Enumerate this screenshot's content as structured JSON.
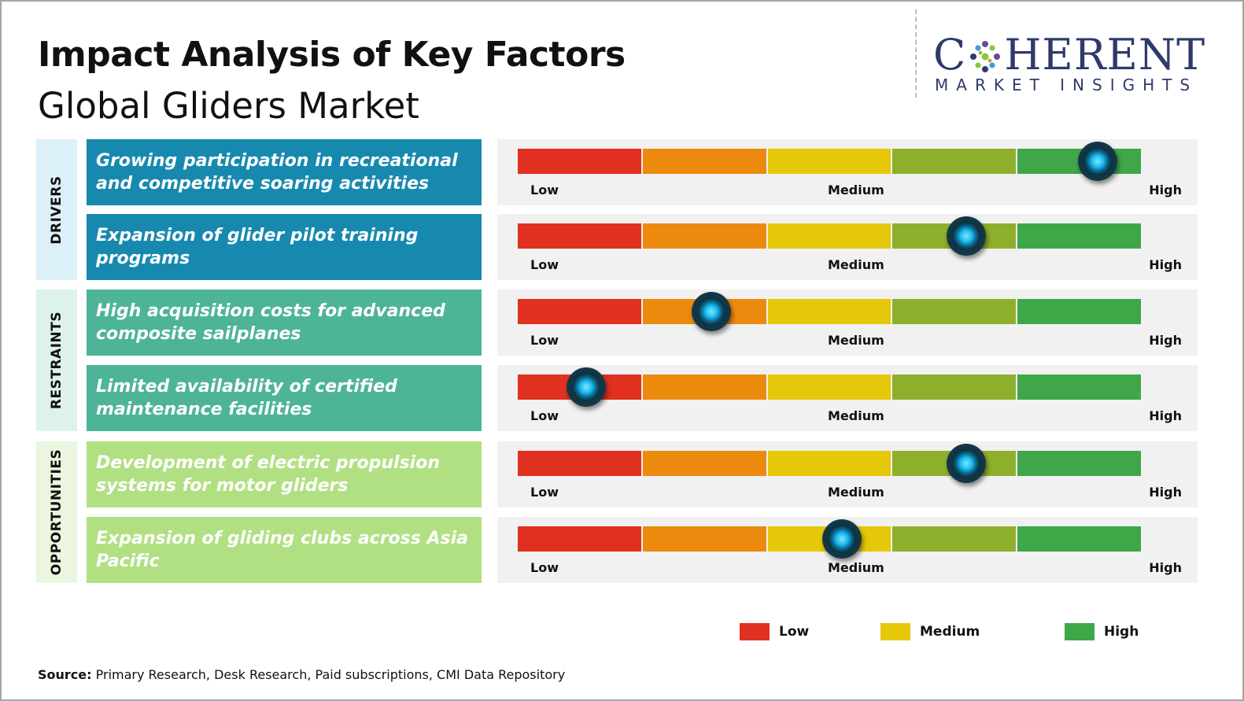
{
  "title": "Impact Analysis of Key Factors",
  "subtitle": "Global Gliders Market",
  "logo": {
    "main": "C  HERENT",
    "sub": "MARKET INSIGHTS"
  },
  "colors": {
    "drivers_label_bg": "#dcf0f9",
    "drivers_factor_bg": "#1789af",
    "restraints_label_bg": "#ddf2ea",
    "restraints_factor_bg": "#4db497",
    "opportunities_label_bg": "#eaf6e0",
    "opportunities_factor_bg": "#b1e083",
    "scale": [
      "#e03020",
      "#ec8a0e",
      "#e6c80a",
      "#8eaf2c",
      "#3fa748"
    ]
  },
  "categories": [
    {
      "label": "DRIVERS"
    },
    {
      "label": "RESTRAINTS"
    },
    {
      "label": "OPPORTUNITIES"
    }
  ],
  "scale_labels": {
    "low": "Low",
    "medium": "Medium",
    "high": "High"
  },
  "chart_data": {
    "type": "table",
    "title": "Impact Analysis of Key Factors",
    "subtitle": "Global Gliders Market",
    "scale": [
      "Low",
      "Medium",
      "High"
    ],
    "factors": [
      {
        "category": "DRIVERS",
        "text": "Growing participation in recreational and competitive soaring activities",
        "impact": 0.93
      },
      {
        "category": "DRIVERS",
        "text": "Expansion of glider pilot training programs",
        "impact": 0.72
      },
      {
        "category": "RESTRAINTS",
        "text": "High acquisition costs for advanced composite sailplanes",
        "impact": 0.31
      },
      {
        "category": "RESTRAINTS",
        "text": "Limited availability of certified maintenance facilities",
        "impact": 0.11
      },
      {
        "category": "OPPORTUNITIES",
        "text": "Development of electric propulsion systems for motor gliders",
        "impact": 0.72
      },
      {
        "category": "OPPORTUNITIES",
        "text": "Expansion of gliding clubs across Asia Pacific",
        "impact": 0.52
      }
    ]
  },
  "legend": [
    {
      "label": "Low",
      "color": "#e03020"
    },
    {
      "label": "Medium",
      "color": "#e6c80a"
    },
    {
      "label": "High",
      "color": "#3fa748"
    }
  ],
  "source": {
    "label": "Source:",
    "text": " Primary Research, Desk Research, Paid subscriptions, CMI Data Repository"
  }
}
